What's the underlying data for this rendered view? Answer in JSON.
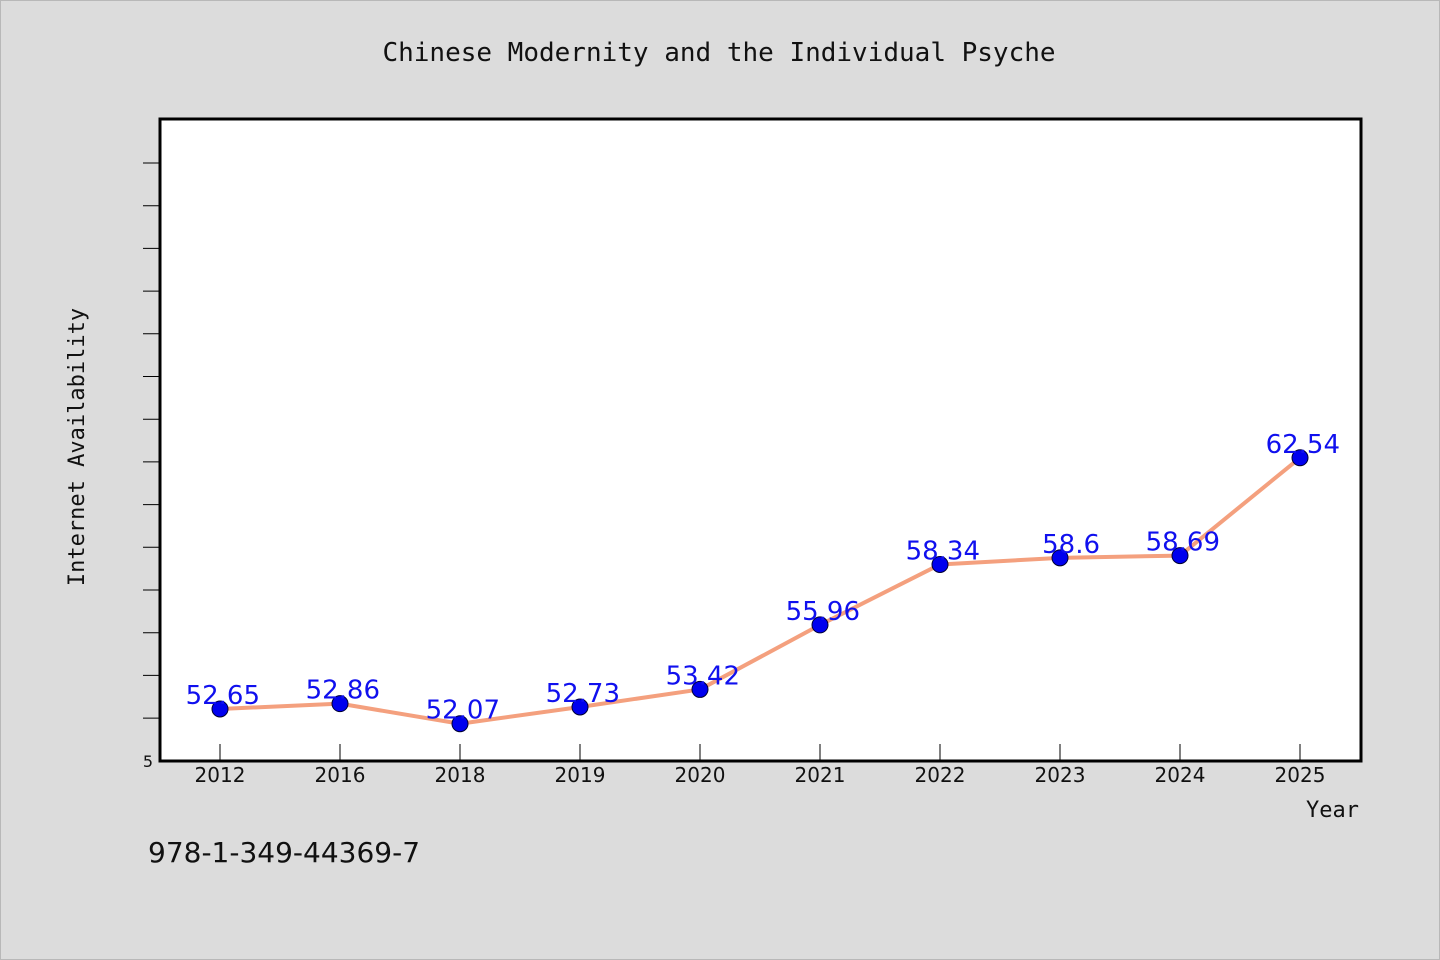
{
  "chart_data": {
    "type": "line",
    "title": "Chinese Modernity and the Individual Psyche",
    "xlabel": "Year",
    "ylabel": "Internet Availability",
    "categories": [
      "2012",
      "2016",
      "2018",
      "2019",
      "2020",
      "2021",
      "2022",
      "2023",
      "2024",
      "2025"
    ],
    "series": [
      {
        "values": [
          52.65,
          52.86,
          52.07,
          52.73,
          53.42,
          55.96,
          58.34,
          58.6,
          58.69,
          62.54
        ],
        "data_labels": [
          "52.65",
          "52.86",
          "52.07",
          "52.73",
          "53.42",
          "55.96",
          "58.34",
          "58.6",
          "58.69",
          "62.54"
        ]
      }
    ],
    "ylim": [
      50,
      65
    ],
    "y_tick_labels": [
      "5"
    ],
    "grid": false,
    "legend": "none",
    "colors": {
      "line": "#f4a07e",
      "marker": "#0000ee",
      "data_label": "#1010ee",
      "plot_background": "#ffffff",
      "page_background": "#dcdcdc"
    }
  },
  "footer": {
    "isbn": "978-1-349-44369-7"
  }
}
